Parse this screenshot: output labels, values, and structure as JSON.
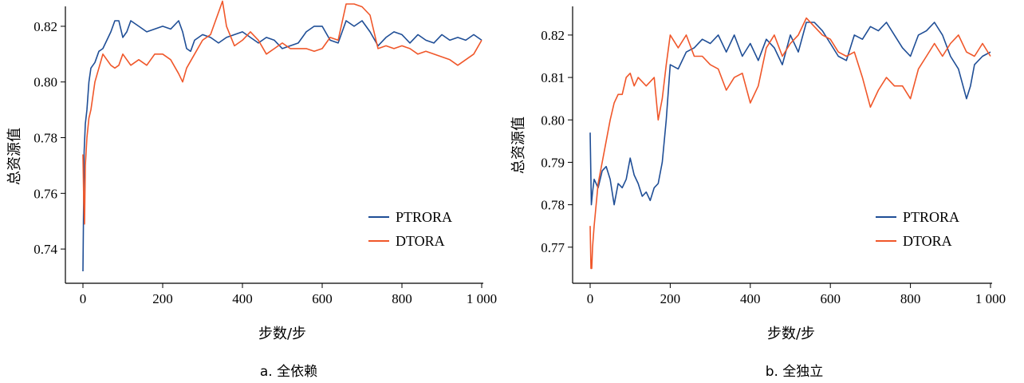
{
  "colors": {
    "PTRORA": "#1f4e96",
    "DTORA": "#f0572a"
  },
  "chart_data": [
    {
      "type": "line",
      "caption": "a.  全依赖",
      "xlabel": "步数/步",
      "ylabel": "总资源值",
      "xlim": [
        0,
        1000
      ],
      "ylim": [
        0.73,
        0.826
      ],
      "xticks": [
        0,
        200,
        400,
        600,
        800,
        1000
      ],
      "xtick_labels": [
        "0",
        "200",
        "400",
        "600",
        "800",
        "1 000"
      ],
      "yticks": [
        0.74,
        0.76,
        0.78,
        0.8,
        0.82
      ],
      "ytick_labels": [
        "0.74",
        "0.76",
        "0.78",
        "0.80",
        "0.82"
      ],
      "legend": "lower-right",
      "series": [
        {
          "name": "PTRORA",
          "color": "#1f4e96",
          "x": [
            0,
            3,
            6,
            10,
            15,
            20,
            30,
            40,
            50,
            60,
            70,
            80,
            90,
            100,
            110,
            120,
            140,
            160,
            180,
            200,
            220,
            240,
            250,
            260,
            270,
            280,
            300,
            320,
            340,
            360,
            380,
            400,
            420,
            440,
            460,
            480,
            500,
            520,
            540,
            560,
            580,
            600,
            620,
            640,
            660,
            680,
            700,
            720,
            740,
            760,
            780,
            800,
            820,
            840,
            860,
            880,
            900,
            920,
            940,
            960,
            980,
            1000
          ],
          "y": [
            0.732,
            0.775,
            0.785,
            0.79,
            0.8,
            0.805,
            0.807,
            0.811,
            0.812,
            0.815,
            0.818,
            0.822,
            0.822,
            0.816,
            0.818,
            0.822,
            0.82,
            0.818,
            0.819,
            0.82,
            0.819,
            0.822,
            0.818,
            0.812,
            0.811,
            0.815,
            0.817,
            0.816,
            0.814,
            0.816,
            0.817,
            0.818,
            0.816,
            0.814,
            0.816,
            0.815,
            0.812,
            0.813,
            0.814,
            0.818,
            0.82,
            0.82,
            0.815,
            0.814,
            0.822,
            0.82,
            0.822,
            0.818,
            0.813,
            0.816,
            0.818,
            0.817,
            0.814,
            0.817,
            0.815,
            0.814,
            0.817,
            0.815,
            0.816,
            0.815,
            0.817,
            0.815
          ]
        },
        {
          "name": "DTORA",
          "color": "#f0572a",
          "x": [
            0,
            2,
            4,
            6,
            10,
            15,
            20,
            30,
            40,
            50,
            60,
            70,
            80,
            90,
            100,
            120,
            140,
            160,
            180,
            200,
            220,
            240,
            250,
            260,
            280,
            300,
            320,
            340,
            350,
            360,
            380,
            400,
            420,
            440,
            460,
            480,
            500,
            520,
            540,
            560,
            580,
            600,
            620,
            640,
            660,
            680,
            700,
            720,
            740,
            760,
            780,
            800,
            820,
            840,
            860,
            880,
            900,
            920,
            940,
            960,
            980,
            1000
          ],
          "y": [
            0.774,
            0.757,
            0.749,
            0.77,
            0.78,
            0.787,
            0.79,
            0.8,
            0.805,
            0.81,
            0.808,
            0.806,
            0.805,
            0.806,
            0.81,
            0.806,
            0.808,
            0.806,
            0.81,
            0.81,
            0.808,
            0.803,
            0.8,
            0.805,
            0.81,
            0.815,
            0.817,
            0.825,
            0.829,
            0.82,
            0.813,
            0.815,
            0.818,
            0.815,
            0.81,
            0.812,
            0.814,
            0.812,
            0.812,
            0.812,
            0.811,
            0.812,
            0.816,
            0.815,
            0.828,
            0.828,
            0.827,
            0.824,
            0.812,
            0.813,
            0.812,
            0.813,
            0.812,
            0.81,
            0.811,
            0.81,
            0.809,
            0.808,
            0.806,
            0.808,
            0.81,
            0.815
          ]
        }
      ]
    },
    {
      "type": "line",
      "caption": "b.  全独立",
      "xlabel": "步数/步",
      "ylabel": "总资源值",
      "xlim": [
        0,
        1000
      ],
      "ylim": [
        0.763,
        0.826
      ],
      "xticks": [
        0,
        200,
        400,
        600,
        800,
        1000
      ],
      "xtick_labels": [
        "0",
        "200",
        "400",
        "600",
        "800",
        "1 000"
      ],
      "yticks": [
        0.77,
        0.78,
        0.79,
        0.8,
        0.81,
        0.82
      ],
      "ytick_labels": [
        "0.77",
        "0.78",
        "0.79",
        "0.80",
        "0.81",
        "0.82"
      ],
      "legend": "lower-right",
      "series": [
        {
          "name": "PTRORA",
          "color": "#1f4e96",
          "x": [
            0,
            3,
            6,
            10,
            20,
            30,
            40,
            50,
            60,
            70,
            80,
            90,
            100,
            110,
            120,
            130,
            140,
            150,
            160,
            170,
            180,
            190,
            200,
            220,
            240,
            260,
            280,
            300,
            320,
            340,
            360,
            380,
            400,
            420,
            440,
            460,
            480,
            500,
            520,
            540,
            560,
            580,
            600,
            620,
            640,
            660,
            680,
            700,
            720,
            740,
            760,
            780,
            800,
            820,
            840,
            860,
            880,
            900,
            920,
            940,
            950,
            960,
            980,
            1000
          ],
          "y": [
            0.797,
            0.78,
            0.783,
            0.786,
            0.784,
            0.788,
            0.789,
            0.786,
            0.78,
            0.785,
            0.784,
            0.786,
            0.791,
            0.787,
            0.785,
            0.782,
            0.783,
            0.781,
            0.784,
            0.785,
            0.79,
            0.8,
            0.813,
            0.812,
            0.816,
            0.817,
            0.819,
            0.818,
            0.82,
            0.816,
            0.82,
            0.815,
            0.818,
            0.814,
            0.819,
            0.817,
            0.813,
            0.82,
            0.816,
            0.823,
            0.823,
            0.821,
            0.818,
            0.815,
            0.814,
            0.82,
            0.819,
            0.822,
            0.821,
            0.823,
            0.82,
            0.817,
            0.815,
            0.82,
            0.821,
            0.823,
            0.82,
            0.815,
            0.812,
            0.805,
            0.808,
            0.813,
            0.815,
            0.816
          ]
        },
        {
          "name": "DTORA",
          "color": "#f0572a",
          "x": [
            0,
            2,
            4,
            6,
            10,
            20,
            30,
            40,
            50,
            60,
            70,
            80,
            90,
            100,
            110,
            120,
            140,
            160,
            170,
            180,
            190,
            200,
            220,
            240,
            260,
            280,
            300,
            320,
            340,
            360,
            380,
            400,
            420,
            440,
            460,
            480,
            500,
            520,
            540,
            560,
            580,
            600,
            620,
            640,
            660,
            680,
            700,
            720,
            740,
            760,
            780,
            800,
            820,
            840,
            860,
            880,
            900,
            920,
            940,
            960,
            980,
            1000
          ],
          "y": [
            0.775,
            0.765,
            0.765,
            0.77,
            0.775,
            0.785,
            0.79,
            0.795,
            0.8,
            0.804,
            0.806,
            0.806,
            0.81,
            0.811,
            0.808,
            0.81,
            0.808,
            0.81,
            0.8,
            0.805,
            0.813,
            0.82,
            0.817,
            0.82,
            0.815,
            0.815,
            0.813,
            0.812,
            0.807,
            0.81,
            0.811,
            0.804,
            0.808,
            0.817,
            0.82,
            0.815,
            0.818,
            0.82,
            0.824,
            0.822,
            0.82,
            0.819,
            0.816,
            0.815,
            0.816,
            0.81,
            0.803,
            0.807,
            0.81,
            0.808,
            0.808,
            0.805,
            0.812,
            0.815,
            0.818,
            0.815,
            0.818,
            0.82,
            0.816,
            0.815,
            0.818,
            0.815
          ]
        }
      ]
    }
  ]
}
